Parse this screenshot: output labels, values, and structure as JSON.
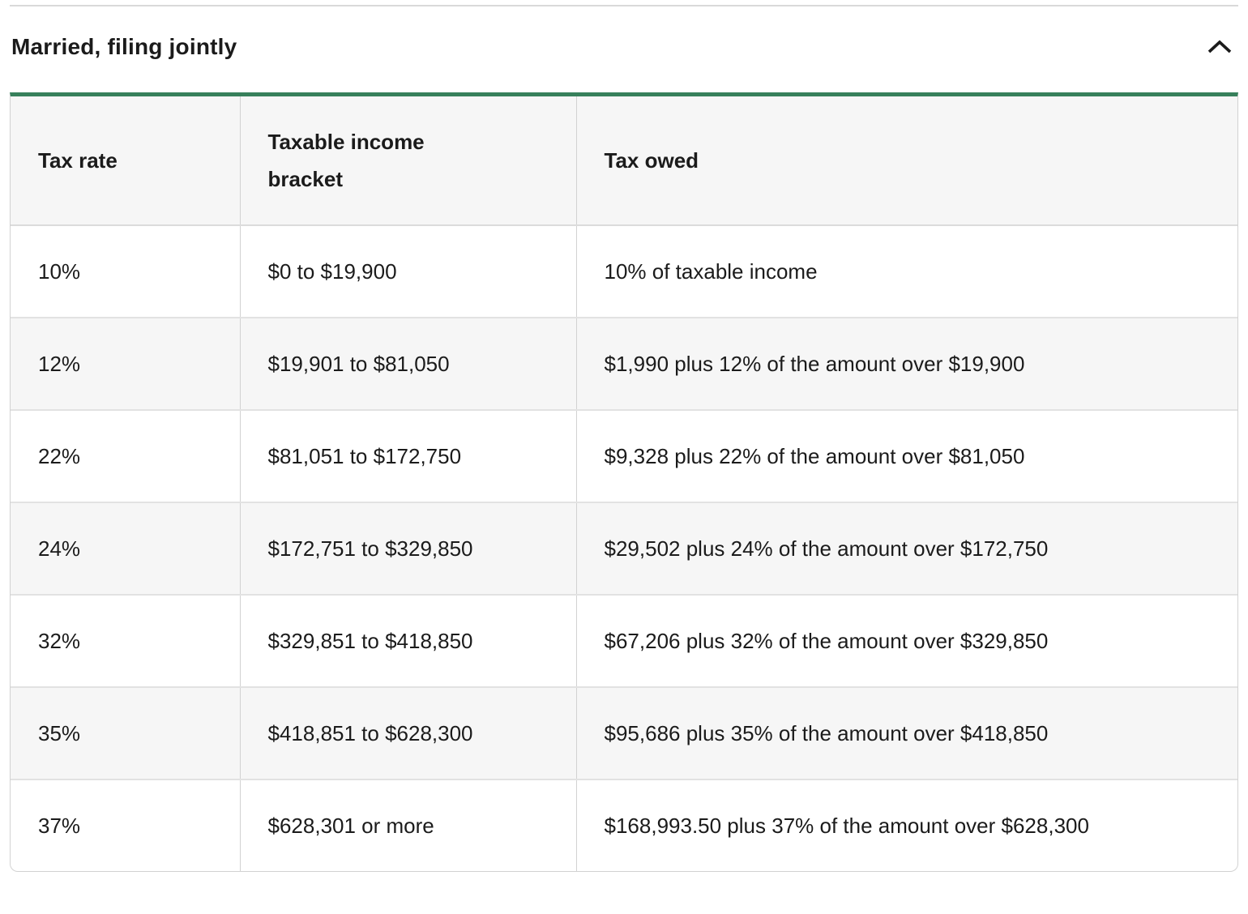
{
  "accordion": {
    "title": "Married, filing jointly",
    "expanded": true,
    "chevron_icon": "chevron-up"
  },
  "table": {
    "columns": [
      "Tax rate",
      "Taxable income bracket",
      "Tax owed"
    ],
    "rows": [
      [
        "10%",
        "$0 to $19,900",
        "10% of taxable income"
      ],
      [
        "12%",
        "$19,901 to $81,050",
        "$1,990 plus 12% of the amount over $19,900"
      ],
      [
        "22%",
        "$81,051 to $172,750",
        "$9,328 plus 22% of the amount over $81,050"
      ],
      [
        "24%",
        "$172,751 to $329,850",
        "$29,502 plus 24% of the amount over $172,750"
      ],
      [
        "32%",
        "$329,851 to $418,850",
        "$67,206 plus 32% of the amount over $329,850"
      ],
      [
        "35%",
        "$418,851 to $628,300",
        "$95,686 plus 35% of the amount over $418,850"
      ],
      [
        "37%",
        "$628,301 or more",
        "$168,993.50 plus 37% of the amount over $628,300"
      ]
    ]
  },
  "colors": {
    "accent_green": "#37805b",
    "top_divider": "#d9d9d9",
    "row_stripe": "#f6f6f6",
    "cell_border": "#d2d2d2",
    "text": "#1b1b1b"
  }
}
